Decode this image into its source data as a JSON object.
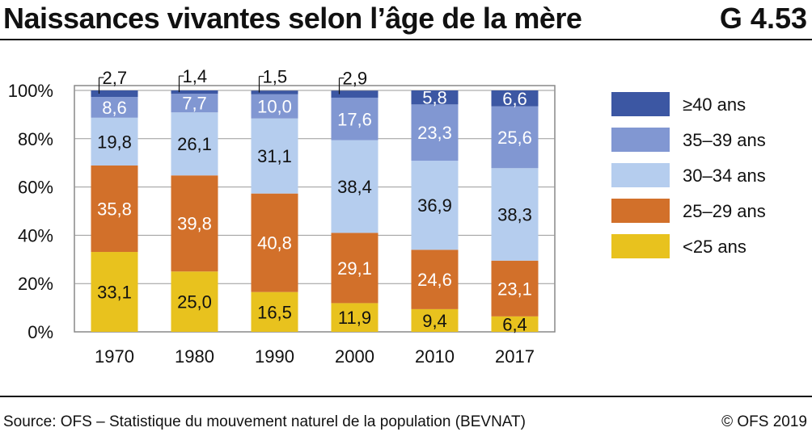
{
  "header": {
    "title": "Naissances vivantes selon l’âge de la mère",
    "figure_number": "G 4.53"
  },
  "footer": {
    "source": "Source: OFS – Statistique du mouvement naturel de la population (BEVNAT)",
    "copyright": "© OFS 2019"
  },
  "colors": {
    "lt25": "#e8c21e",
    "25_29": "#d2702a",
    "30_34": "#b5cdee",
    "35_39": "#8197d2",
    "ge40": "#3c57a3",
    "grid": "#999999",
    "plot_border": "#888888",
    "text": "#111111"
  },
  "chart_data": {
    "type": "bar",
    "stacked": true,
    "categories": [
      "1970",
      "1980",
      "1990",
      "2000",
      "2010",
      "2017"
    ],
    "ylim": [
      0,
      100
    ],
    "yticks": [
      "0%",
      "20%",
      "40%",
      "60%",
      "80%",
      "100%"
    ],
    "grid": true,
    "legend_position": "right",
    "series": [
      {
        "name": "<25 ans",
        "key": "lt25",
        "values": [
          33.1,
          25.0,
          16.5,
          11.9,
          9.4,
          6.4
        ],
        "labels": [
          "33,1",
          "25,0",
          "16,5",
          "11,9",
          "9,4",
          "6,4"
        ]
      },
      {
        "name": "25–29 ans",
        "key": "25_29",
        "values": [
          35.8,
          39.8,
          40.8,
          29.1,
          24.6,
          23.1
        ],
        "labels": [
          "35,8",
          "39,8",
          "40,8",
          "29,1",
          "24,6",
          "23,1"
        ]
      },
      {
        "name": "30–34 ans",
        "key": "30_34",
        "values": [
          19.8,
          26.1,
          31.1,
          38.4,
          36.9,
          38.3
        ],
        "labels": [
          "19,8",
          "26,1",
          "31,1",
          "38,4",
          "36,9",
          "38,3"
        ]
      },
      {
        "name": "35–39 ans",
        "key": "35_39",
        "values": [
          8.6,
          7.7,
          10.0,
          17.6,
          23.3,
          25.6
        ],
        "labels": [
          "8,6",
          "7,7",
          "10,0",
          "17,6",
          "23,3",
          "25,6"
        ]
      },
      {
        "name": "≥40 ans",
        "key": "ge40",
        "values": [
          2.7,
          1.4,
          1.5,
          2.9,
          5.8,
          6.6
        ],
        "labels": [
          "2,7",
          "1,4",
          "1,5",
          "2,9",
          "5,8",
          "6,6"
        ]
      }
    ]
  }
}
